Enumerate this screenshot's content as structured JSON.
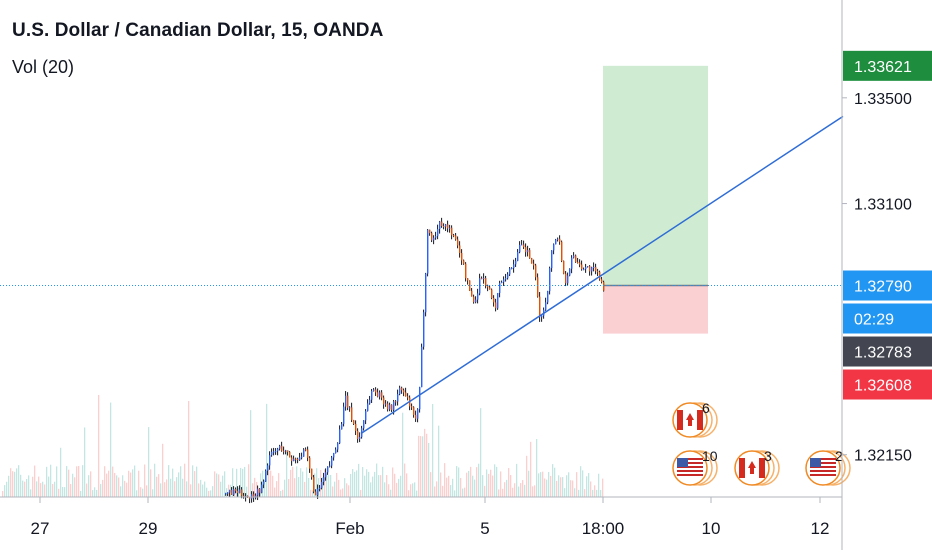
{
  "header": {
    "symbol_title": "U.S. Dollar / Canadian Dollar, 15, OANDA",
    "volume_label": "Vol (20)"
  },
  "chart_data": {
    "type": "candlestick",
    "symbol": "U.S. Dollar / Canadian Dollar",
    "interval": "15",
    "exchange": "OANDA",
    "ylim": [
      1.3199,
      1.3387
    ],
    "y_ticks": [
      "1.33500",
      "1.33100",
      "1.32150"
    ],
    "x_ticks": [
      {
        "label": "27",
        "pos": 40
      },
      {
        "label": "29",
        "pos": 148
      },
      {
        "label": "Feb",
        "pos": 350
      },
      {
        "label": "5",
        "pos": 485
      },
      {
        "label": "18:00",
        "pos": 603
      },
      {
        "label": "10",
        "pos": 711
      },
      {
        "label": "12",
        "pos": 820
      }
    ],
    "price_path": [
      [
        225,
        1.32
      ],
      [
        235,
        1.3201
      ],
      [
        250,
        1.3199
      ],
      [
        262,
        1.3203
      ],
      [
        268,
        1.3214
      ],
      [
        280,
        1.3218
      ],
      [
        292,
        1.3213
      ],
      [
        305,
        1.3216
      ],
      [
        315,
        1.3199
      ],
      [
        322,
        1.3205
      ],
      [
        330,
        1.3212
      ],
      [
        338,
        1.3222
      ],
      [
        345,
        1.3236
      ],
      [
        352,
        1.3228
      ],
      [
        358,
        1.322
      ],
      [
        365,
        1.3232
      ],
      [
        372,
        1.324
      ],
      [
        380,
        1.3237
      ],
      [
        390,
        1.3232
      ],
      [
        400,
        1.324
      ],
      [
        408,
        1.3235
      ],
      [
        414,
        1.3228
      ],
      [
        418,
        1.3232
      ],
      [
        423,
        1.327
      ],
      [
        427,
        1.33
      ],
      [
        432,
        1.3296
      ],
      [
        440,
        1.3303
      ],
      [
        450,
        1.33
      ],
      [
        460,
        1.3291
      ],
      [
        468,
        1.3278
      ],
      [
        474,
        1.3272
      ],
      [
        480,
        1.3283
      ],
      [
        488,
        1.3278
      ],
      [
        494,
        1.327
      ],
      [
        500,
        1.3281
      ],
      [
        510,
        1.3285
      ],
      [
        520,
        1.3294
      ],
      [
        528,
        1.3291
      ],
      [
        534,
        1.3284
      ],
      [
        540,
        1.3265
      ],
      [
        546,
        1.3275
      ],
      [
        552,
        1.3295
      ],
      [
        558,
        1.3298
      ],
      [
        564,
        1.328
      ],
      [
        572,
        1.329
      ],
      [
        582,
        1.3286
      ],
      [
        592,
        1.3285
      ],
      [
        600,
        1.3282
      ],
      [
        603,
        1.32783
      ]
    ],
    "trend_line": {
      "from": [
        361,
        1.3223
      ],
      "to": [
        843,
        1.3343
      ]
    },
    "position": {
      "type": "long",
      "entry": 1.3279,
      "target": 1.33621,
      "stop": 1.32608,
      "from_x": 603,
      "to_x": 708
    },
    "price_labels": [
      {
        "value": 1.33621,
        "text": "1.33621",
        "bg": "#1e8e3e"
      },
      {
        "value": 1.3279,
        "text": "1.32790",
        "bg": "#2196f3"
      },
      {
        "value": 1.327,
        "text": "02:29",
        "bg": "#2196f3"
      },
      {
        "value": 1.32783,
        "text": "1.32783",
        "bg": "#434651"
      },
      {
        "value": 1.32608,
        "text": "1.32608",
        "bg": "#f23645"
      }
    ],
    "events": [
      {
        "flag": "ca",
        "count": "6",
        "x": 690,
        "y": 420
      },
      {
        "flag": "us",
        "count": "10",
        "x": 690,
        "y": 468
      },
      {
        "flag": "ca",
        "count": "3",
        "x": 752,
        "y": 468
      },
      {
        "flag": "us",
        "count": "2",
        "x": 823,
        "y": 468
      }
    ],
    "colors": {
      "up": "#26a69a",
      "down": "#ef5350",
      "candle": "#131722",
      "candle_up": "#2962ff",
      "candle_down": "#e65100",
      "trend": "#2e6cd6",
      "target_zone": "#cfecd2",
      "stop_zone": "#fbd0d3",
      "axis_text": "#131722",
      "axis_line": "#b2b5be"
    }
  }
}
